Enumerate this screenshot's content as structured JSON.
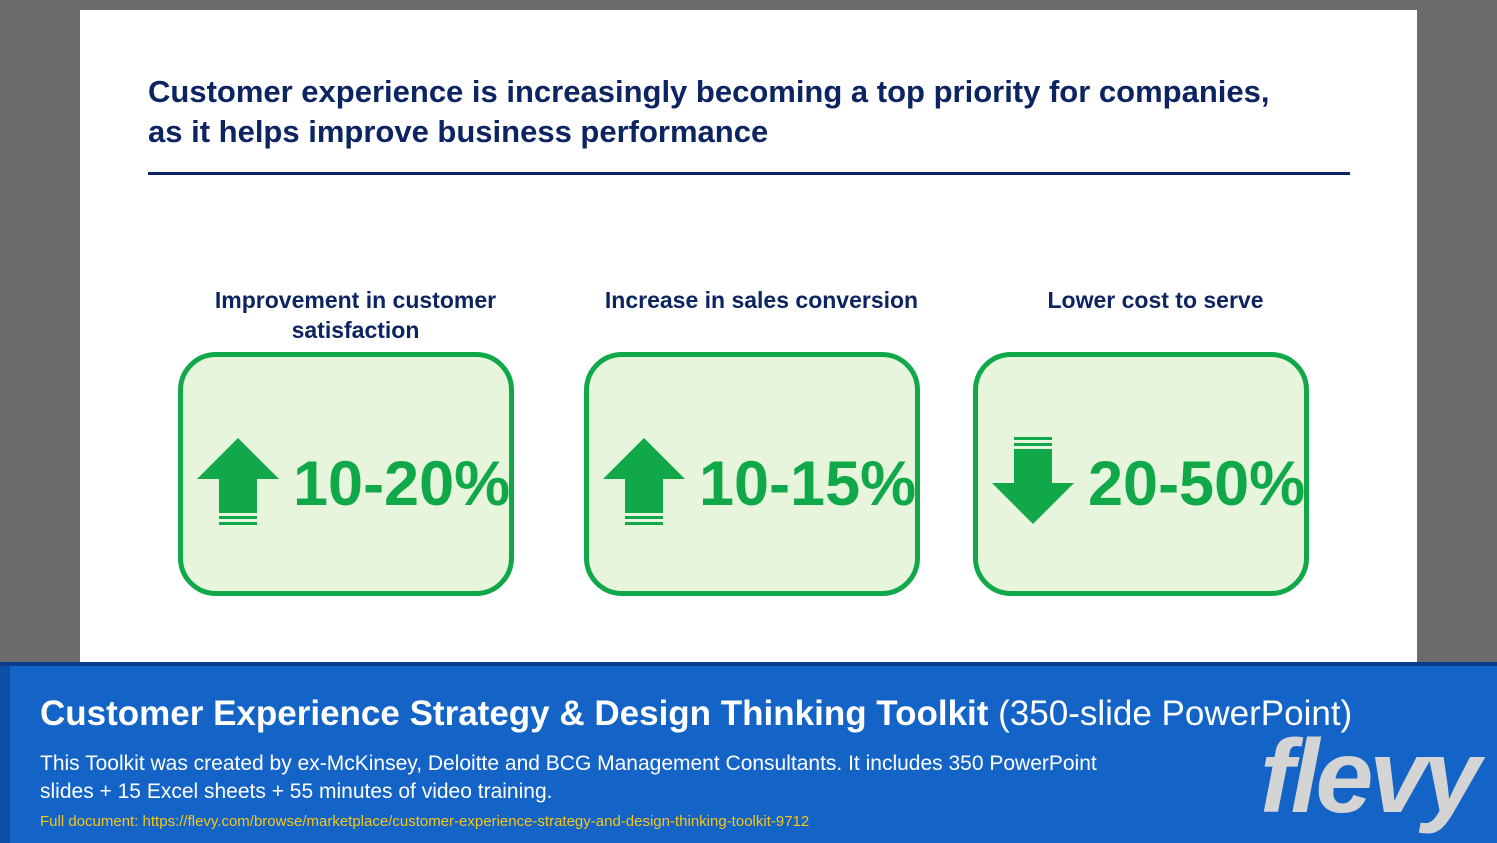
{
  "slide": {
    "title": "Customer experience is increasingly becoming a top priority for companies, as it helps improve business performance"
  },
  "metrics": [
    {
      "label": "Improvement in customer satisfaction",
      "value": "10-20%",
      "direction": "up",
      "icon": "up-arrow-icon"
    },
    {
      "label": "Increase in sales conversion",
      "value": "10-15%",
      "direction": "up",
      "icon": "up-arrow-icon"
    },
    {
      "label": "Lower cost to serve",
      "value": "20-50%",
      "direction": "down",
      "icon": "down-arrow-icon"
    }
  ],
  "colors": {
    "title": "#0c2461",
    "accent_green": "#11a84a",
    "card_fill": "#e6f5dc",
    "banner": "#1464c8",
    "link": "#f5c518"
  },
  "banner": {
    "title_bold": "Customer Experience Strategy & Design Thinking Toolkit",
    "title_light": " (350-slide PowerPoint)",
    "description": "This Toolkit was created by ex-McKinsey, Deloitte and BCG Management Consultants. It includes 350 PowerPoint slides + 15 Excel sheets + 55 minutes of video training.",
    "link": "Full document: https://flevy.com/browse/marketplace/customer-experience-strategy-and-design-thinking-toolkit-9712",
    "logo": "flevy"
  }
}
